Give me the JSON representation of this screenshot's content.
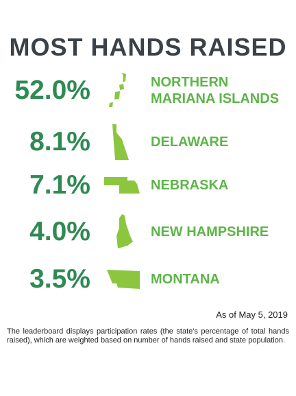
{
  "title": "MOST HANDS RAISED",
  "rows": [
    {
      "percent": "52.0%",
      "state": "NORTHERN MARIANA ISLANDS"
    },
    {
      "percent": "8.1%",
      "state": "DELAWARE"
    },
    {
      "percent": "7.1%",
      "state": "NEBRASKA"
    },
    {
      "percent": "4.0%",
      "state": "NEW HAMPSHIRE"
    },
    {
      "percent": "3.5%",
      "state": "MONTANA"
    }
  ],
  "as_of": "As of May 5, 2019",
  "footnote": "The leaderboard displays participation rates (the state's percentage of total hands raised), which are weighted based on number of hands raised and state population."
}
